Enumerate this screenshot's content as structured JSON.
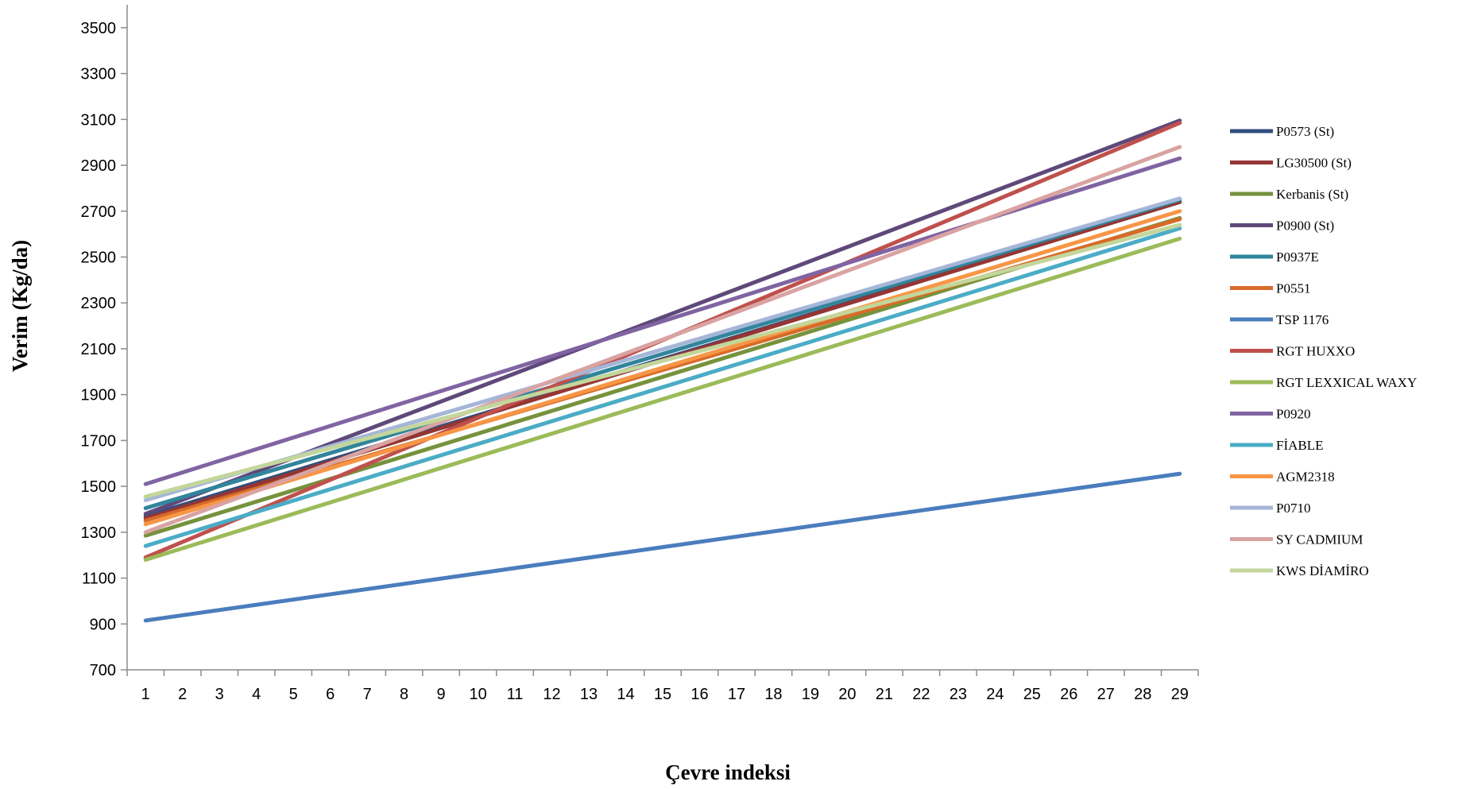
{
  "chart_data": {
    "type": "line",
    "title": "",
    "xlabel": "Çevre indeksi",
    "ylabel": "Verim (Kg/da)",
    "x": [
      1,
      2,
      3,
      4,
      5,
      6,
      7,
      8,
      9,
      10,
      11,
      12,
      13,
      14,
      15,
      16,
      17,
      18,
      19,
      20,
      21,
      22,
      23,
      24,
      25,
      26,
      27,
      28,
      29
    ],
    "x_ticks": [
      "1",
      "2",
      "3",
      "4",
      "5",
      "6",
      "7",
      "8",
      "9",
      "10",
      "11",
      "12",
      "13",
      "14",
      "15",
      "16",
      "17",
      "18",
      "19",
      "20",
      "21",
      "22",
      "23",
      "24",
      "25",
      "26",
      "27",
      "28",
      "29"
    ],
    "ylim": [
      700,
      3600
    ],
    "y_ticks": [
      "700",
      "900",
      "1100",
      "1300",
      "1500",
      "1700",
      "1900",
      "2100",
      "2300",
      "2500",
      "2700",
      "2900",
      "3100",
      "3300",
      "3500"
    ],
    "grid": false,
    "legend_position": "right",
    "series": [
      {
        "name": "P0573 (St)",
        "color": "#2f4f7f",
        "start": 1370,
        "end": 2740
      },
      {
        "name": "LG30500 (St)",
        "color": "#943634",
        "start": 1360,
        "end": 2740
      },
      {
        "name": "Kerbanis (St)",
        "color": "#76923c",
        "start": 1285,
        "end": 2670
      },
      {
        "name": "P0900 (St)",
        "color": "#5f497a",
        "start": 1380,
        "end": 3095
      },
      {
        "name": "P0937E",
        "color": "#31859c",
        "start": 1405,
        "end": 2750
      },
      {
        "name": "P0551",
        "color": "#d86b29",
        "start": 1350,
        "end": 2665
      },
      {
        "name": "TSP 1176",
        "color": "#4a7dbd",
        "start": 915,
        "end": 1555
      },
      {
        "name": "RGT HUXXO",
        "color": "#c0504d",
        "start": 1190,
        "end": 3085
      },
      {
        "name": "RGT LEXXICAL WAXY",
        "color": "#9bbb59",
        "start": 1180,
        "end": 2580
      },
      {
        "name": "P0920",
        "color": "#8064a2",
        "start": 1510,
        "end": 2930
      },
      {
        "name": "FİABLE",
        "color": "#4bacc6",
        "start": 1240,
        "end": 2625
      },
      {
        "name": "AGM2318",
        "color": "#f79646",
        "start": 1335,
        "end": 2700
      },
      {
        "name": "P0710",
        "color": "#a5b6d8",
        "start": 1440,
        "end": 2755
      },
      {
        "name": "SY CADMIUM",
        "color": "#d9a3a2",
        "start": 1300,
        "end": 2980
      },
      {
        "name": "KWS DİAMİRO",
        "color": "#c3d69b",
        "start": 1455,
        "end": 2640
      }
    ]
  }
}
